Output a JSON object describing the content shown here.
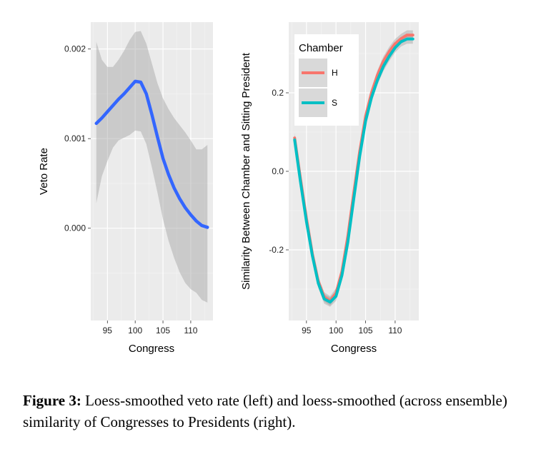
{
  "caption": {
    "label": "Figure 3:",
    "text": "Loess-smoothed veto rate (left) and loess-smoothed (across ensemble) similarity of Congresses to Presidents (right)."
  },
  "chart_data": [
    {
      "type": "line",
      "title": "",
      "xlabel": "Congress",
      "ylabel": "Veto Rate",
      "xlim": [
        92,
        114
      ],
      "ylim": [
        -0.00103,
        0.0023
      ],
      "xticks": [
        "95",
        "100",
        "105",
        "110"
      ],
      "yticks": [
        "0.000",
        "0.001",
        "0.002"
      ],
      "grid": true,
      "series": [
        {
          "color": "#3366ff",
          "x": [
            93,
            94,
            95,
            96,
            97,
            98,
            99,
            100,
            101,
            102,
            103,
            104,
            105,
            106,
            107,
            108,
            109,
            110,
            111,
            112,
            113
          ],
          "y": [
            0.00117,
            0.00123,
            0.0013,
            0.00137,
            0.00144,
            0.0015,
            0.00157,
            0.00164,
            0.00163,
            0.0015,
            0.00127,
            0.00102,
            0.00078,
            0.0006,
            0.00045,
            0.00033,
            0.00023,
            0.00015,
            8e-05,
            3e-05,
            1e-05
          ],
          "ci_lower": [
            0.00028,
            0.00058,
            0.00075,
            0.0009,
            0.00098,
            0.00101,
            0.00104,
            0.00109,
            0.00108,
            0.00094,
            0.00068,
            0.0004,
            0.0001,
            -0.00014,
            -0.00033,
            -0.00049,
            -0.00061,
            -0.00068,
            -0.00072,
            -0.0008,
            -0.00083
          ],
          "ci_upper": [
            0.00208,
            0.00188,
            0.0018,
            0.0018,
            0.00188,
            0.00198,
            0.0021,
            0.00219,
            0.0022,
            0.00206,
            0.00184,
            0.00162,
            0.00145,
            0.00133,
            0.00123,
            0.00115,
            0.00107,
            0.00098,
            0.00088,
            0.00088,
            0.00093
          ]
        }
      ]
    },
    {
      "type": "line",
      "title": "",
      "xlabel": "Congress",
      "ylabel": "Similarity Between Chamber and Sitting President",
      "xlim": [
        92,
        114
      ],
      "ylim": [
        -0.38,
        0.38
      ],
      "xticks": [
        "95",
        "100",
        "105",
        "110"
      ],
      "yticks": [
        "-0.2",
        "0.0",
        "0.2"
      ],
      "grid": true,
      "legend": {
        "title": "Chamber",
        "placement": "top-left"
      },
      "series": [
        {
          "name": "H",
          "color": "#f8766d",
          "x": [
            93,
            94,
            95,
            96,
            97,
            98,
            99,
            100,
            101,
            102,
            103,
            104,
            105,
            106,
            107,
            108,
            109,
            110,
            111,
            112,
            113
          ],
          "y": [
            0.085,
            -0.02,
            -0.12,
            -0.21,
            -0.28,
            -0.32,
            -0.33,
            -0.31,
            -0.255,
            -0.165,
            -0.055,
            0.05,
            0.14,
            0.2,
            0.245,
            0.28,
            0.305,
            0.325,
            0.338,
            0.347,
            0.347
          ]
        },
        {
          "name": "S",
          "color": "#00bfc4",
          "x": [
            93,
            94,
            95,
            96,
            97,
            98,
            99,
            100,
            101,
            102,
            103,
            104,
            105,
            106,
            107,
            108,
            109,
            110,
            111,
            112,
            113
          ],
          "y": [
            0.08,
            -0.028,
            -0.128,
            -0.215,
            -0.285,
            -0.325,
            -0.333,
            -0.318,
            -0.265,
            -0.18,
            -0.07,
            0.038,
            0.128,
            0.188,
            0.232,
            0.267,
            0.293,
            0.315,
            0.33,
            0.337,
            0.337
          ]
        }
      ]
    }
  ]
}
